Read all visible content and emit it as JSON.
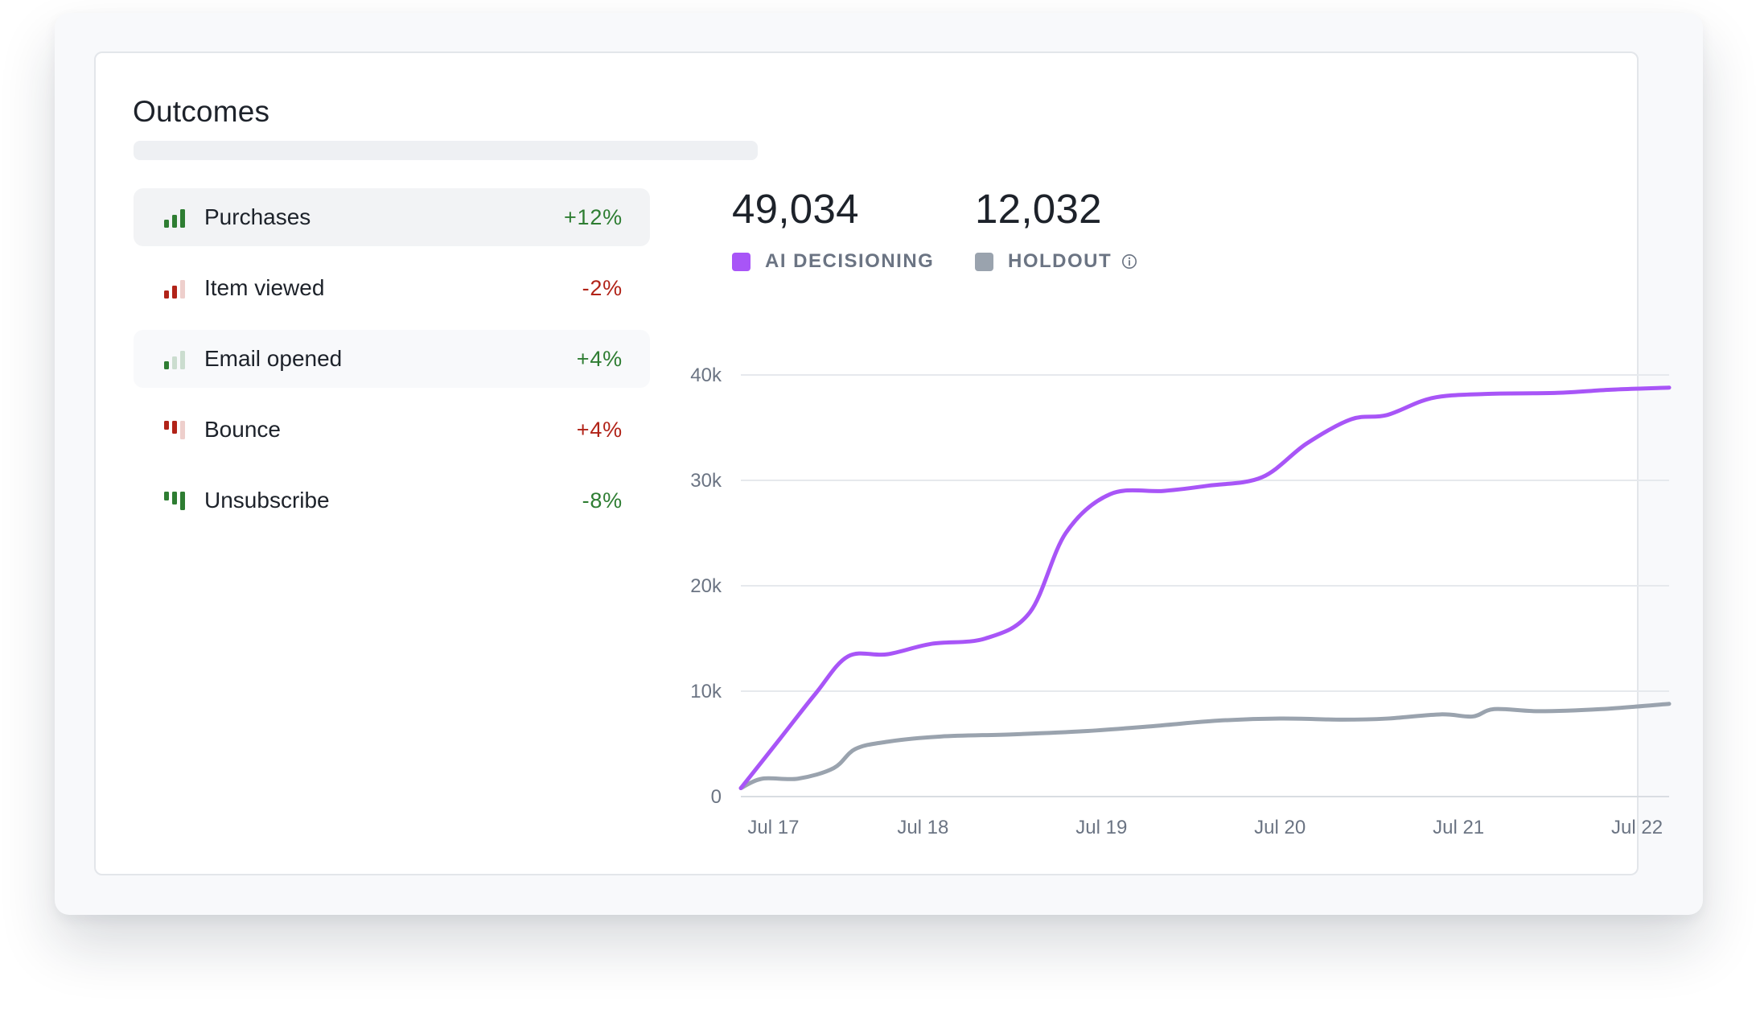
{
  "panel": {
    "title": "Outcomes"
  },
  "outcomes": [
    {
      "label": "Purchases",
      "change": "+12%",
      "direction": "up",
      "level": 3,
      "trend_color": "#2e7d32",
      "selected": true
    },
    {
      "label": "Item viewed",
      "change": "-2%",
      "direction": "up",
      "level": 2,
      "trend_color": "#b12318",
      "selected": false
    },
    {
      "label": "Email opened",
      "change": "+4%",
      "direction": "up",
      "level": 1,
      "trend_color": "#2e7d32",
      "selected": false
    },
    {
      "label": "Bounce",
      "change": "+4%",
      "direction": "down",
      "level": 2,
      "trend_color": "#b12318",
      "selected": false
    },
    {
      "label": "Unsubscribe",
      "change": "-8%",
      "direction": "down",
      "level": 3,
      "trend_color": "#2e7d32",
      "selected": false
    }
  ],
  "stats": [
    {
      "value": "49,034",
      "label": "AI DECISIONING",
      "color": "#a855f7",
      "info_icon": false
    },
    {
      "value": "12,032",
      "label": "HOLDOUT",
      "color": "#9aa3ae",
      "info_icon": true
    }
  ],
  "chart_data": {
    "type": "line",
    "x": [
      "Jul 17",
      "Jul 17.5",
      "Jul 18",
      "Jul 18.5",
      "Jul 19",
      "Jul 19.5",
      "Jul 20",
      "Jul 20.5",
      "Jul 21",
      "Jul 21.5",
      "Jul 22"
    ],
    "x_ticks": [
      "Jul 17",
      "Jul 18",
      "Jul 19",
      "Jul 20",
      "Jul 21",
      "Jul 22"
    ],
    "x_range": [
      16.98,
      22.18
    ],
    "y_ticks": [
      "0",
      "10k",
      "20k",
      "30k",
      "40k"
    ],
    "ylim": [
      0,
      40000
    ],
    "grid": true,
    "series": [
      {
        "name": "AI DECISIONING",
        "color": "#a855f7",
        "points": [
          [
            16.98,
            800
          ],
          [
            17.2,
            5500
          ],
          [
            17.4,
            9800
          ],
          [
            17.58,
            13300
          ],
          [
            17.8,
            13500
          ],
          [
            18.05,
            14500
          ],
          [
            18.35,
            15000
          ],
          [
            18.6,
            17500
          ],
          [
            18.8,
            25000
          ],
          [
            19.05,
            28700
          ],
          [
            19.35,
            29000
          ],
          [
            19.6,
            29500
          ],
          [
            19.9,
            30300
          ],
          [
            20.15,
            33500
          ],
          [
            20.4,
            35800
          ],
          [
            20.6,
            36200
          ],
          [
            20.85,
            37800
          ],
          [
            21.15,
            38200
          ],
          [
            21.55,
            38300
          ],
          [
            21.85,
            38600
          ],
          [
            22.18,
            38800
          ]
        ]
      },
      {
        "name": "HOLDOUT",
        "color": "#9aa3ae",
        "points": [
          [
            16.98,
            800
          ],
          [
            17.1,
            1700
          ],
          [
            17.3,
            1700
          ],
          [
            17.5,
            2700
          ],
          [
            17.62,
            4500
          ],
          [
            17.8,
            5200
          ],
          [
            18.1,
            5700
          ],
          [
            18.5,
            5900
          ],
          [
            18.9,
            6200
          ],
          [
            19.3,
            6700
          ],
          [
            19.65,
            7200
          ],
          [
            20.0,
            7400
          ],
          [
            20.35,
            7300
          ],
          [
            20.6,
            7400
          ],
          [
            20.9,
            7800
          ],
          [
            21.08,
            7600
          ],
          [
            21.2,
            8300
          ],
          [
            21.45,
            8100
          ],
          [
            21.8,
            8300
          ],
          [
            22.18,
            8800
          ]
        ]
      }
    ]
  }
}
